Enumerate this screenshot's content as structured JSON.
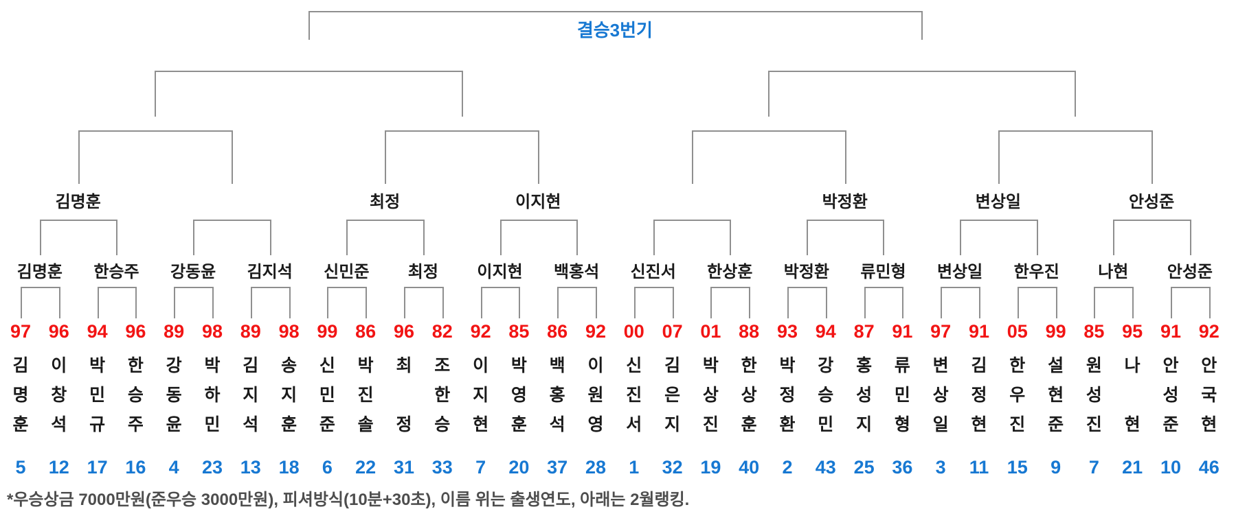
{
  "title": "결승3번기",
  "colors": {
    "line_gray": "#8f8f8f",
    "title_blue": "#1778d2",
    "year_red": "#f21414",
    "rank_blue": "#1778d2",
    "name_black": "#1a1a1a",
    "footnote_gray": "#4d4d4d"
  },
  "bracket": {
    "final_label": "결승3번기",
    "quarterfinal_winners": [
      "김명훈",
      "",
      "최정",
      "이지현",
      "",
      "박정환",
      "변상일",
      "안성준"
    ],
    "round16_winners": [
      "김명훈",
      "한승주",
      "강동윤",
      "김지석",
      "신민준",
      "최정",
      "이지현",
      "백홍석",
      "신진서",
      "한상훈",
      "박정환",
      "류민형",
      "변상일",
      "한우진",
      "나현",
      "안성준"
    ],
    "players": [
      {
        "year": "97",
        "name": "김명훈",
        "rank": "5"
      },
      {
        "year": "96",
        "name": "이창석",
        "rank": "12"
      },
      {
        "year": "94",
        "name": "박민규",
        "rank": "17"
      },
      {
        "year": "96",
        "name": "한승주",
        "rank": "16"
      },
      {
        "year": "89",
        "name": "강동윤",
        "rank": "4"
      },
      {
        "year": "98",
        "name": "박하민",
        "rank": "23"
      },
      {
        "year": "89",
        "name": "김지석",
        "rank": "13"
      },
      {
        "year": "98",
        "name": "송지훈",
        "rank": "18"
      },
      {
        "year": "99",
        "name": "신민준",
        "rank": "6"
      },
      {
        "year": "86",
        "name": "박진솔",
        "rank": "22"
      },
      {
        "year": "96",
        "name": "최정",
        "rank": "31"
      },
      {
        "year": "82",
        "name": "조한승",
        "rank": "33"
      },
      {
        "year": "92",
        "name": "이지현",
        "rank": "7"
      },
      {
        "year": "85",
        "name": "박영훈",
        "rank": "20"
      },
      {
        "year": "86",
        "name": "백홍석",
        "rank": "37"
      },
      {
        "year": "92",
        "name": "이원영",
        "rank": "28"
      },
      {
        "year": "00",
        "name": "신진서",
        "rank": "1"
      },
      {
        "year": "07",
        "name": "김은지",
        "rank": "32"
      },
      {
        "year": "01",
        "name": "박상진",
        "rank": "19"
      },
      {
        "year": "88",
        "name": "한상훈",
        "rank": "40"
      },
      {
        "year": "93",
        "name": "박정환",
        "rank": "2"
      },
      {
        "year": "94",
        "name": "강승민",
        "rank": "43"
      },
      {
        "year": "87",
        "name": "홍성지",
        "rank": "25"
      },
      {
        "year": "91",
        "name": "류민형",
        "rank": "36"
      },
      {
        "year": "97",
        "name": "변상일",
        "rank": "3"
      },
      {
        "year": "91",
        "name": "김정현",
        "rank": "11"
      },
      {
        "year": "05",
        "name": "한우진",
        "rank": "15"
      },
      {
        "year": "99",
        "name": "설현준",
        "rank": "9"
      },
      {
        "year": "85",
        "name": "원성진",
        "rank": "7"
      },
      {
        "year": "95",
        "name": "나현",
        "rank": "21"
      },
      {
        "year": "91",
        "name": "안성준",
        "rank": "10"
      },
      {
        "year": "92",
        "name": "안국현",
        "rank": "46"
      }
    ]
  },
  "footnote": "*우승상금 7000만원(준우승 3000만원), 피셔방식(10분+30초), 이름 위는 출생연도, 아래는 2월랭킹."
}
